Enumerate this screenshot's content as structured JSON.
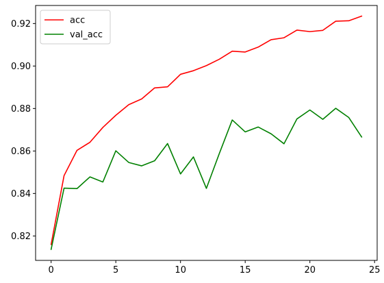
{
  "chart_data": {
    "type": "line",
    "title": "",
    "xlabel": "",
    "ylabel": "",
    "x": [
      0,
      1,
      2,
      3,
      4,
      5,
      6,
      7,
      8,
      9,
      10,
      11,
      12,
      13,
      14,
      15,
      16,
      17,
      18,
      19,
      20,
      21,
      22,
      23,
      24
    ],
    "xlim": [
      -1.2,
      25.2
    ],
    "ylim": [
      0.8085,
      0.9285
    ],
    "xticks": [
      0,
      5,
      10,
      15,
      20,
      25
    ],
    "xtick_labels": [
      "0",
      "5",
      "10",
      "15",
      "20",
      "25"
    ],
    "yticks": [
      0.82,
      0.84,
      0.86,
      0.88,
      0.9,
      0.92
    ],
    "ytick_labels": [
      "0.82",
      "0.84",
      "0.86",
      "0.88",
      "0.90",
      "0.92"
    ],
    "grid": false,
    "legend_position": "top-left",
    "series": [
      {
        "name": "acc",
        "color": "#ff0000",
        "values": [
          0.816,
          0.8484,
          0.8603,
          0.8641,
          0.8711,
          0.8768,
          0.8818,
          0.8845,
          0.8897,
          0.8902,
          0.8961,
          0.8978,
          0.9002,
          0.9032,
          0.907,
          0.9066,
          0.9089,
          0.9124,
          0.9133,
          0.9169,
          0.9162,
          0.9168,
          0.9211,
          0.9213,
          0.9235
        ]
      },
      {
        "name": "val_acc",
        "color": "#008000",
        "values": [
          0.8137,
          0.8425,
          0.8423,
          0.8478,
          0.8454,
          0.8601,
          0.8546,
          0.853,
          0.8554,
          0.8635,
          0.8492,
          0.8572,
          0.8424,
          0.8588,
          0.8746,
          0.869,
          0.8713,
          0.8681,
          0.8634,
          0.8751,
          0.8793,
          0.8749,
          0.8801,
          0.8758,
          0.8666
        ]
      }
    ]
  }
}
